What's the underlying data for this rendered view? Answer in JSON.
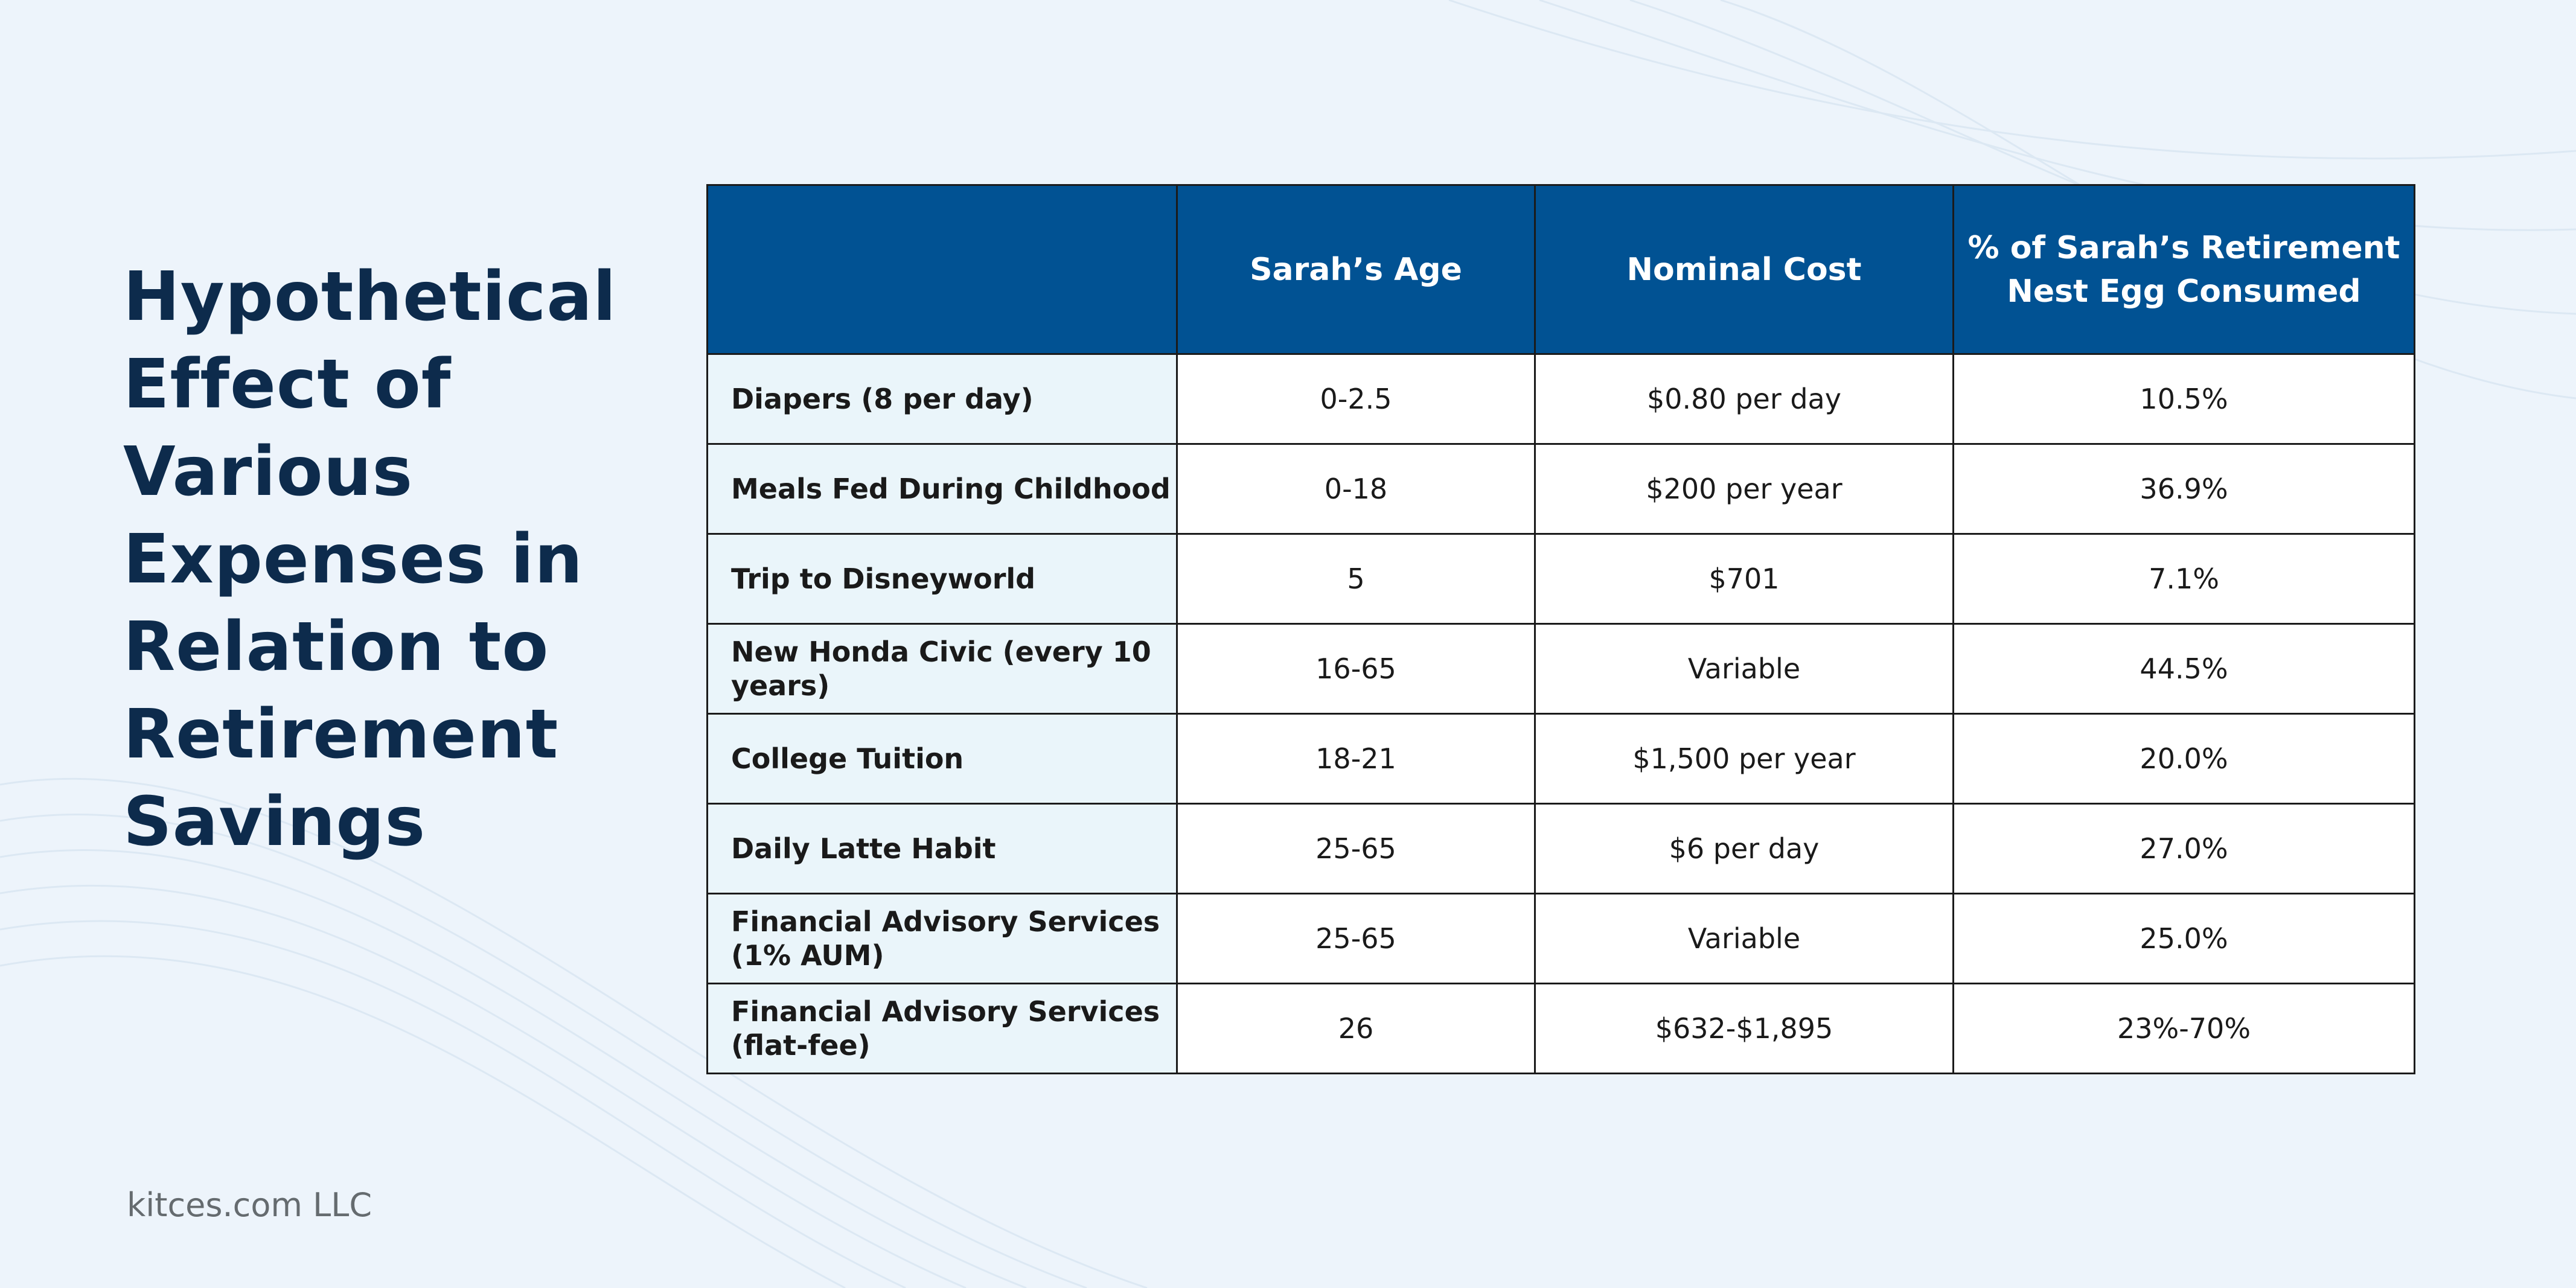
{
  "title": "Hypothetical Effect of Various Expenses in Relation to Retirement Savings",
  "footer": "kitces.com LLC",
  "colors": {
    "header_bg": "#015293",
    "label_bg": "#eaf5fa",
    "title": "#0d2b4c",
    "background": "#edf4fb"
  },
  "table": {
    "headers": [
      "",
      "Sarah’s Age",
      "Nominal Cost",
      "% of Sarah’s Retirement Nest Egg Consumed"
    ],
    "rows": [
      {
        "expense": "Diapers (8 per day)",
        "age": "0-2.5",
        "cost": "$0.80 per day",
        "pct": "10.5%"
      },
      {
        "expense": "Meals Fed During Childhood",
        "age": "0-18",
        "cost": "$200 per year",
        "pct": "36.9%"
      },
      {
        "expense": "Trip to Disneyworld",
        "age": "5",
        "cost": "$701",
        "pct": "7.1%"
      },
      {
        "expense": "New Honda Civic (every 10 years)",
        "age": "16-65",
        "cost": "Variable",
        "pct": "44.5%"
      },
      {
        "expense": "College Tuition",
        "age": "18-21",
        "cost": "$1,500 per year",
        "pct": "20.0%"
      },
      {
        "expense": "Daily Latte Habit",
        "age": "25-65",
        "cost": "$6 per day",
        "pct": "27.0%"
      },
      {
        "expense": "Financial Advisory Services (1% AUM)",
        "age": "25-65",
        "cost": "Variable",
        "pct": "25.0%"
      },
      {
        "expense": "Financial Advisory Services (flat-fee)",
        "age": "26",
        "cost": "$632-$1,895",
        "pct": "23%-70%"
      }
    ]
  }
}
